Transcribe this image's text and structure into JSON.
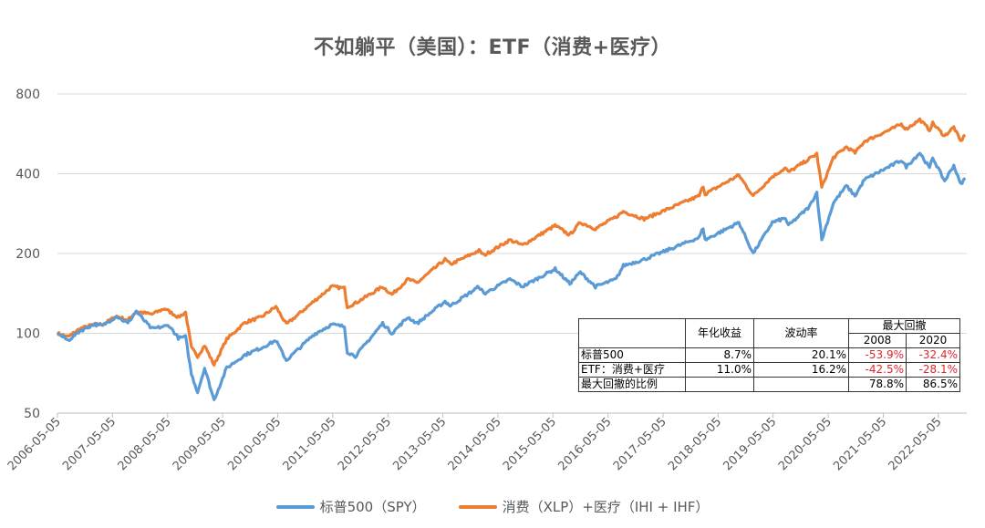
{
  "title": "不如躺平（美国）：ETF（消费+医疗）",
  "chart_data": {
    "type": "line",
    "title": "不如躺平（美国）：ETF（消费+医疗）",
    "y_scale": "log",
    "ylim": [
      50,
      800
    ],
    "y_ticks": [
      50,
      100,
      200,
      400,
      800
    ],
    "x_tick_labels": [
      "2006-05-05",
      "2007-05-05",
      "2008-05-05",
      "2009-05-05",
      "2010-05-05",
      "2011-05-05",
      "2012-05-05",
      "2013-05-05",
      "2014-05-05",
      "2015-05-05",
      "2016-05-05",
      "2017-05-05",
      "2018-05-05",
      "2019-05-05",
      "2020-05-05",
      "2021-05-05",
      "2022-05-05"
    ],
    "grid": true,
    "legend_position": "bottom",
    "series": [
      {
        "name": "标普500（SPY）",
        "color": "#5b9bd5",
        "points": [
          [
            "2006-05-05",
            100
          ],
          [
            "2006-07-15",
            94
          ],
          [
            "2006-10-01",
            102
          ],
          [
            "2007-01-01",
            108
          ],
          [
            "2007-03-01",
            107
          ],
          [
            "2007-06-01",
            116
          ],
          [
            "2007-08-15",
            109
          ],
          [
            "2007-10-09",
            121
          ],
          [
            "2008-01-20",
            104
          ],
          [
            "2008-05-15",
            107
          ],
          [
            "2008-07-15",
            96
          ],
          [
            "2008-09-01",
            97
          ],
          [
            "2008-10-10",
            70
          ],
          [
            "2008-11-20",
            60
          ],
          [
            "2009-01-05",
            74
          ],
          [
            "2009-03-09",
            56
          ],
          [
            "2009-06-01",
            74
          ],
          [
            "2009-10-01",
            83
          ],
          [
            "2010-01-15",
            88
          ],
          [
            "2010-04-23",
            94
          ],
          [
            "2010-07-02",
            79
          ],
          [
            "2010-12-31",
            99
          ],
          [
            "2011-04-29",
            108
          ],
          [
            "2011-07-22",
            106
          ],
          [
            "2011-08-10",
            85
          ],
          [
            "2011-10-03",
            82
          ],
          [
            "2012-04-01",
            109
          ],
          [
            "2012-06-01",
            100
          ],
          [
            "2012-09-15",
            115
          ],
          [
            "2012-11-15",
            109
          ],
          [
            "2013-05-20",
            132
          ],
          [
            "2013-06-24",
            127
          ],
          [
            "2013-12-31",
            150
          ],
          [
            "2014-02-03",
            141
          ],
          [
            "2014-07-24",
            160
          ],
          [
            "2014-10-15",
            150
          ],
          [
            "2015-05-20",
            175
          ],
          [
            "2015-08-25",
            154
          ],
          [
            "2015-11-03",
            170
          ],
          [
            "2016-02-11",
            150
          ],
          [
            "2016-06-27",
            160
          ],
          [
            "2016-08-15",
            180
          ],
          [
            "2016-12-31",
            190
          ],
          [
            "2017-12-31",
            230
          ],
          [
            "2018-01-26",
            250
          ],
          [
            "2018-02-08",
            225
          ],
          [
            "2018-09-20",
            262
          ],
          [
            "2018-12-24",
            200
          ],
          [
            "2019-04-30",
            262
          ],
          [
            "2019-07-26",
            272
          ],
          [
            "2019-08-15",
            255
          ],
          [
            "2019-12-31",
            300
          ],
          [
            "2020-02-19",
            340
          ],
          [
            "2020-03-23",
            225
          ],
          [
            "2020-06-08",
            310
          ],
          [
            "2020-09-02",
            360
          ],
          [
            "2020-10-30",
            330
          ],
          [
            "2020-12-31",
            380
          ],
          [
            "2021-06-30",
            430
          ],
          [
            "2021-09-02",
            450
          ],
          [
            "2021-10-04",
            425
          ],
          [
            "2022-01-03",
            480
          ],
          [
            "2022-03-08",
            420
          ],
          [
            "2022-03-29",
            460
          ],
          [
            "2022-06-16",
            375
          ],
          [
            "2022-08-16",
            430
          ],
          [
            "2022-09-30",
            365
          ],
          [
            "2022-10-31",
            385
          ]
        ]
      },
      {
        "name": "消费（XLP）+医疗（IHI + IHF）",
        "color": "#ed7d31",
        "points": [
          [
            "2006-05-05",
            100
          ],
          [
            "2006-07-15",
            97
          ],
          [
            "2006-10-01",
            104
          ],
          [
            "2007-01-01",
            108
          ],
          [
            "2007-03-01",
            108
          ],
          [
            "2007-06-01",
            116
          ],
          [
            "2007-08-15",
            112
          ],
          [
            "2007-10-09",
            121
          ],
          [
            "2008-01-20",
            118
          ],
          [
            "2008-04-15",
            124
          ],
          [
            "2008-07-15",
            115
          ],
          [
            "2008-09-01",
            120
          ],
          [
            "2008-10-10",
            88
          ],
          [
            "2008-11-20",
            82
          ],
          [
            "2009-01-05",
            90
          ],
          [
            "2009-03-09",
            76
          ],
          [
            "2009-06-01",
            95
          ],
          [
            "2009-10-01",
            110
          ],
          [
            "2010-01-15",
            115
          ],
          [
            "2010-04-23",
            126
          ],
          [
            "2010-07-02",
            108
          ],
          [
            "2010-12-31",
            132
          ],
          [
            "2011-04-29",
            150
          ],
          [
            "2011-07-22",
            148
          ],
          [
            "2011-08-10",
            126
          ],
          [
            "2011-10-03",
            130
          ],
          [
            "2012-04-01",
            150
          ],
          [
            "2012-06-01",
            140
          ],
          [
            "2012-09-15",
            160
          ],
          [
            "2012-11-15",
            155
          ],
          [
            "2013-05-20",
            190
          ],
          [
            "2013-06-24",
            182
          ],
          [
            "2013-12-31",
            205
          ],
          [
            "2014-02-03",
            197
          ],
          [
            "2014-07-24",
            225
          ],
          [
            "2014-10-15",
            215
          ],
          [
            "2015-05-20",
            255
          ],
          [
            "2015-08-25",
            235
          ],
          [
            "2015-11-03",
            262
          ],
          [
            "2016-02-11",
            248
          ],
          [
            "2016-06-27",
            275
          ],
          [
            "2016-08-15",
            288
          ],
          [
            "2016-12-31",
            270
          ],
          [
            "2017-12-31",
            330
          ],
          [
            "2018-01-26",
            360
          ],
          [
            "2018-02-08",
            335
          ],
          [
            "2018-09-20",
            395
          ],
          [
            "2018-12-24",
            330
          ],
          [
            "2019-04-30",
            390
          ],
          [
            "2019-07-26",
            420
          ],
          [
            "2019-08-15",
            405
          ],
          [
            "2019-12-31",
            455
          ],
          [
            "2020-02-19",
            475
          ],
          [
            "2020-03-23",
            355
          ],
          [
            "2020-06-08",
            460
          ],
          [
            "2020-09-02",
            505
          ],
          [
            "2020-10-30",
            480
          ],
          [
            "2020-12-31",
            530
          ],
          [
            "2021-06-30",
            590
          ],
          [
            "2021-09-02",
            615
          ],
          [
            "2021-10-04",
            590
          ],
          [
            "2022-01-03",
            640
          ],
          [
            "2022-03-08",
            585
          ],
          [
            "2022-03-29",
            620
          ],
          [
            "2022-06-16",
            555
          ],
          [
            "2022-08-16",
            600
          ],
          [
            "2022-09-30",
            530
          ],
          [
            "2022-10-31",
            560
          ]
        ]
      }
    ]
  },
  "table": {
    "header_top": [
      "",
      "年化收益",
      "波动率",
      "最大回撤"
    ],
    "header_sub": [
      "2008",
      "2020"
    ],
    "rows": [
      {
        "label": "标普500",
        "annual": "8.7%",
        "vol": "20.1%",
        "dd2008": "-53.9%",
        "dd2020": "-32.4%"
      },
      {
        "label": "ETF：消费+医疗",
        "annual": "11.0%",
        "vol": "16.2%",
        "dd2008": "-42.5%",
        "dd2020": "-28.1%"
      },
      {
        "label": "最大回撤的比例",
        "annual": "",
        "vol": "",
        "dd2008": "78.8%",
        "dd2020": "86.5%"
      }
    ]
  },
  "legend": {
    "spy": "标普500（SPY）",
    "etf": "消费（XLP）+医疗（IHI + IHF）"
  }
}
